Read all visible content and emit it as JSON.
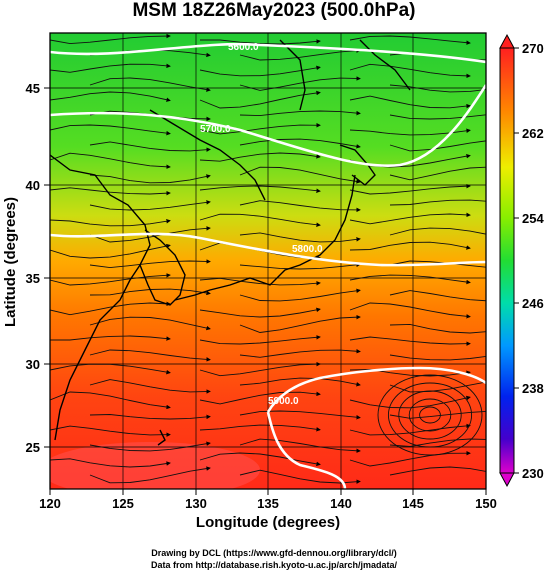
{
  "title": "MSM 18Z26May2023 (500.0hPa)",
  "x_axis": {
    "title": "Longitude (degrees)",
    "ticks": [
      "120",
      "125",
      "130",
      "135",
      "140",
      "145",
      "150"
    ]
  },
  "y_axis": {
    "title": "Latitude  (degrees)",
    "ticks": [
      "45",
      "40",
      "35",
      "30",
      "25"
    ]
  },
  "colorbar": {
    "ticks": [
      "270",
      "262",
      "254",
      "246",
      "238",
      "230"
    ]
  },
  "contour_labels": [
    "5800.0",
    "5700.0",
    "5600.0",
    "5900.0"
  ],
  "credits": {
    "line1": "Drawing by DCL (https://www.gfd-dennou.org/library/dcl/)",
    "line2": "Data from http://database.rish.kyoto-u.ac.jp/arch/jmadata/"
  },
  "colors": {
    "north": "#22cc22",
    "mid": "#e8e000",
    "south": "#ff3010",
    "cbar_top": "#ff2020",
    "cbar_mid": "#33dd33",
    "cbar_bottom": "#dd00cc"
  }
}
